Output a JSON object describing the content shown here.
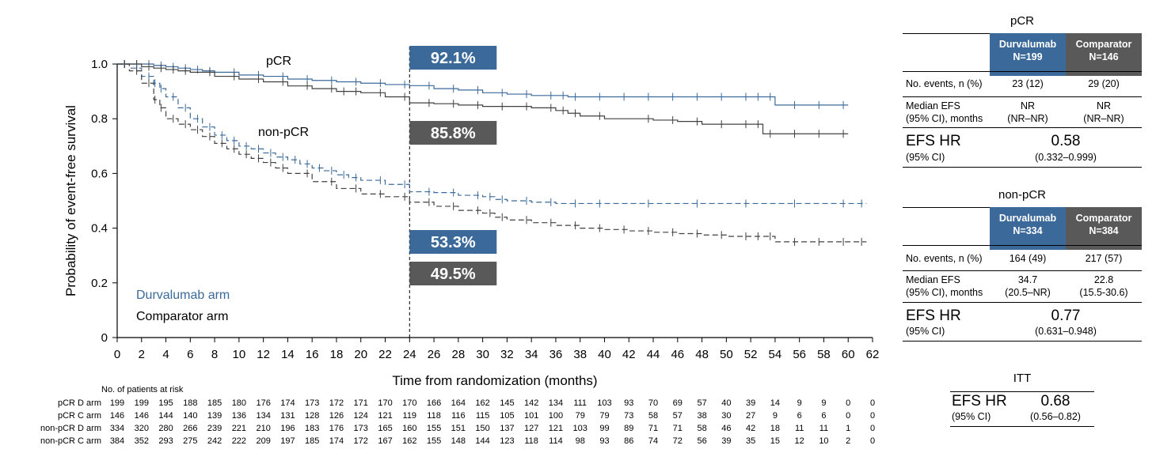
{
  "chart_data": {
    "type": "line",
    "xlabel": "Time from randomization (months)",
    "ylabel": "Probability of event-free survival",
    "xlim": [
      0,
      62
    ],
    "ylim": [
      0,
      1.0
    ],
    "x_ticks": [
      0,
      2,
      4,
      6,
      8,
      10,
      12,
      14,
      16,
      18,
      20,
      22,
      24,
      26,
      28,
      30,
      32,
      34,
      36,
      38,
      40,
      42,
      44,
      46,
      48,
      50,
      52,
      54,
      56,
      58,
      60,
      62
    ],
    "y_ticks": [
      "0",
      "0.2",
      "0.4",
      "0.6",
      "0.8",
      "1.0"
    ],
    "landmark_month": 24,
    "group_labels": [
      "pCR",
      "non-pCR"
    ],
    "legend": [
      "Durvalumab arm",
      "Comparator arm"
    ],
    "colors": {
      "durvalumab": "#3b6a9a",
      "comparator": "#404040",
      "comparator_box": "#595959"
    },
    "series": [
      {
        "name": "pCR D arm",
        "arm": "durvalumab",
        "dashed": false,
        "x": [
          0,
          1,
          2,
          3,
          4,
          5,
          6,
          7,
          8,
          10,
          12,
          14,
          16,
          18,
          20,
          22,
          24,
          26,
          28,
          30,
          32,
          34,
          36,
          37,
          38,
          40,
          42,
          44,
          46,
          48,
          50,
          52,
          53,
          54,
          56,
          58,
          60
        ],
        "y": [
          1.0,
          1.0,
          1.0,
          0.995,
          0.99,
          0.985,
          0.98,
          0.975,
          0.97,
          0.96,
          0.955,
          0.945,
          0.94,
          0.935,
          0.93,
          0.925,
          0.921,
          0.91,
          0.905,
          0.895,
          0.89,
          0.885,
          0.885,
          0.88,
          0.88,
          0.88,
          0.88,
          0.88,
          0.88,
          0.88,
          0.88,
          0.88,
          0.88,
          0.85,
          0.85,
          0.85,
          0.85
        ],
        "label_value": "92.1%"
      },
      {
        "name": "pCR C arm",
        "arm": "comparator",
        "dashed": false,
        "x": [
          0,
          1,
          2,
          3,
          4,
          5,
          6,
          8,
          10,
          12,
          14,
          16,
          18,
          19,
          20,
          22,
          24,
          26,
          28,
          30,
          32,
          34,
          36,
          37,
          38,
          40,
          44,
          46,
          48,
          50,
          52,
          53,
          54,
          56,
          58,
          60
        ],
        "y": [
          1.0,
          1.0,
          0.99,
          0.985,
          0.98,
          0.975,
          0.97,
          0.955,
          0.945,
          0.935,
          0.92,
          0.91,
          0.9,
          0.9,
          0.895,
          0.88,
          0.858,
          0.855,
          0.85,
          0.845,
          0.845,
          0.84,
          0.83,
          0.82,
          0.81,
          0.8,
          0.795,
          0.79,
          0.78,
          0.78,
          0.78,
          0.745,
          0.745,
          0.745,
          0.745,
          0.745
        ],
        "label_value": "85.8%"
      },
      {
        "name": "non-pCR D arm",
        "arm": "durvalumab",
        "dashed": true,
        "x": [
          0,
          1,
          2,
          3,
          3.5,
          4,
          5,
          6,
          7,
          8,
          9,
          10,
          11,
          12,
          13,
          14,
          15,
          16,
          17,
          18,
          19,
          20,
          22,
          24,
          26,
          28,
          30,
          31,
          32,
          34,
          36,
          38,
          40,
          44,
          48,
          52,
          56,
          60,
          61.5
        ],
        "y": [
          1.0,
          0.985,
          0.955,
          0.93,
          0.91,
          0.88,
          0.84,
          0.8,
          0.77,
          0.74,
          0.72,
          0.7,
          0.69,
          0.675,
          0.66,
          0.65,
          0.635,
          0.62,
          0.61,
          0.595,
          0.585,
          0.575,
          0.56,
          0.533,
          0.53,
          0.52,
          0.515,
          0.505,
          0.5,
          0.495,
          0.49,
          0.49,
          0.49,
          0.49,
          0.49,
          0.49,
          0.49,
          0.49,
          0.49
        ],
        "label_value": "53.3%"
      },
      {
        "name": "non-pCR C arm",
        "arm": "comparator",
        "dashed": true,
        "x": [
          0,
          1,
          2,
          3,
          3.5,
          4,
          5,
          6,
          7,
          8,
          9,
          10,
          11,
          12,
          13,
          14,
          16,
          18,
          20,
          22,
          24,
          26,
          28,
          30,
          31,
          32,
          34,
          36,
          38,
          40,
          42,
          44,
          46,
          48,
          50,
          52,
          53,
          54,
          56,
          58,
          60,
          61.5
        ],
        "y": [
          1.0,
          0.975,
          0.93,
          0.87,
          0.84,
          0.8,
          0.78,
          0.76,
          0.735,
          0.71,
          0.69,
          0.67,
          0.655,
          0.64,
          0.62,
          0.6,
          0.57,
          0.545,
          0.525,
          0.515,
          0.495,
          0.48,
          0.465,
          0.455,
          0.44,
          0.43,
          0.42,
          0.41,
          0.4,
          0.395,
          0.39,
          0.385,
          0.38,
          0.375,
          0.37,
          0.37,
          0.37,
          0.35,
          0.35,
          0.35,
          0.35,
          0.35
        ],
        "label_value": "49.5%"
      }
    ],
    "at_risk": {
      "title": "No. of patients at risk",
      "months": [
        0,
        2,
        4,
        6,
        8,
        10,
        12,
        14,
        16,
        18,
        20,
        22,
        24,
        26,
        28,
        30,
        32,
        34,
        36,
        38,
        40,
        42,
        44,
        46,
        48,
        50,
        52,
        54,
        56,
        58,
        60,
        62
      ],
      "rows": [
        {
          "label": "pCR D arm",
          "counts": [
            "199",
            "199",
            "195",
            "188",
            "185",
            "180",
            "176",
            "174",
            "173",
            "172",
            "171",
            "170",
            "170",
            "166",
            "164",
            "162",
            "145",
            "142",
            "134",
            "111",
            "103",
            "93",
            "70",
            "69",
            "57",
            "40",
            "39",
            "14",
            "9",
            "9",
            "0",
            "0"
          ]
        },
        {
          "label": "pCR C arm",
          "counts": [
            "146",
            "146",
            "144",
            "140",
            "139",
            "136",
            "134",
            "131",
            "128",
            "126",
            "124",
            "121",
            "119",
            "118",
            "116",
            "115",
            "105",
            "101",
            "100",
            "79",
            "79",
            "73",
            "58",
            "57",
            "38",
            "30",
            "27",
            "9",
            "6",
            "6",
            "0",
            "0"
          ]
        },
        {
          "label": "non-pCR D arm",
          "counts": [
            "334",
            "320",
            "280",
            "266",
            "239",
            "221",
            "210",
            "196",
            "183",
            "176",
            "173",
            "165",
            "160",
            "155",
            "151",
            "150",
            "137",
            "127",
            "121",
            "103",
            "99",
            "89",
            "71",
            "71",
            "58",
            "46",
            "42",
            "18",
            "11",
            "11",
            "1",
            "0"
          ]
        },
        {
          "label": "non-pCR C arm",
          "counts": [
            "384",
            "352",
            "293",
            "275",
            "242",
            "222",
            "209",
            "197",
            "185",
            "174",
            "172",
            "167",
            "162",
            "155",
            "148",
            "144",
            "123",
            "118",
            "114",
            "98",
            "93",
            "86",
            "74",
            "72",
            "56",
            "39",
            "35",
            "15",
            "12",
            "10",
            "2",
            "0"
          ]
        }
      ]
    }
  },
  "tables": {
    "pcr": {
      "title": "pCR",
      "durvalumab_header": "Durvalumab",
      "durvalumab_n": "N=199",
      "comparator_header": "Comparator",
      "comparator_n": "N=146",
      "events_label": "No. events, n (%)",
      "events_d": "23 (12)",
      "events_c": "29 (20)",
      "median_label_1": "Median EFS",
      "median_label_2": "(95% CI), months",
      "median_d_1": "NR",
      "median_d_2": "(NR–NR)",
      "median_c_1": "NR",
      "median_c_2": "(NR–NR)",
      "hr_label": "EFS HR",
      "hr_ci_label": "(95% CI)",
      "hr_value": "0.58",
      "hr_ci": "(0.332–0.999)"
    },
    "nonpcr": {
      "title": "non-pCR",
      "durvalumab_header": "Durvalumab",
      "durvalumab_n": "N=334",
      "comparator_header": "Comparator",
      "comparator_n": "N=384",
      "events_label": "No. events, n (%)",
      "events_d": "164 (49)",
      "events_c": "217 (57)",
      "median_label_1": "Median EFS",
      "median_label_2": "(95% CI), months",
      "median_d_1": "34.7",
      "median_d_2": "(20.5–NR)",
      "median_c_1": "22.8",
      "median_c_2": "(15.5-30.6)",
      "hr_label": "EFS HR",
      "hr_ci_label": "(95% CI)",
      "hr_value": "0.77",
      "hr_ci": "(0.631–0.948)"
    },
    "itt": {
      "title": "ITT",
      "hr_label": "EFS HR",
      "hr_ci_label": "(95% CI)",
      "hr_value": "0.68",
      "hr_ci": "(0.56–0.82)"
    }
  }
}
